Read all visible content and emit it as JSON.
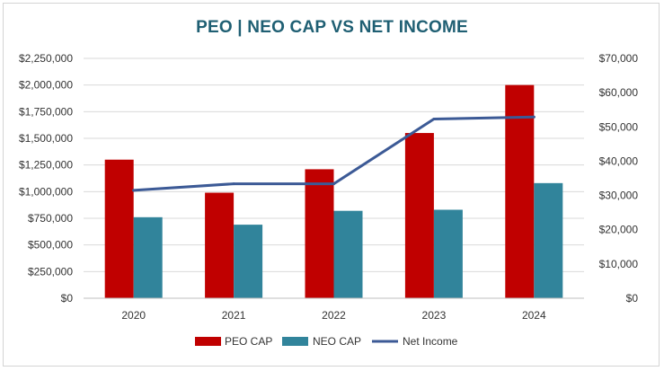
{
  "chart_data": {
    "type": "bar",
    "title": "PEO | NEO CAP VS NET INCOME",
    "categories": [
      "2020",
      "2021",
      "2022",
      "2023",
      "2024"
    ],
    "series": [
      {
        "name": "PEO CAP",
        "axis": "left",
        "kind": "bar",
        "color": "#c00000",
        "values": [
          1300000,
          990000,
          1210000,
          1550000,
          2000000
        ]
      },
      {
        "name": "NEO CAP",
        "axis": "left",
        "kind": "bar",
        "color": "#31849b",
        "values": [
          760000,
          690000,
          820000,
          830000,
          1080000
        ]
      },
      {
        "name": "Net Income",
        "axis": "right",
        "kind": "line",
        "color": "#3c5a96",
        "values": [
          31500,
          33400,
          33400,
          52300,
          52900
        ]
      }
    ],
    "y_left": {
      "ylim": [
        0,
        2250000
      ],
      "ticks": [
        0,
        250000,
        500000,
        750000,
        1000000,
        1250000,
        1500000,
        1750000,
        2000000,
        2250000
      ],
      "tick_labels": [
        "$0",
        "$250,000",
        "$500,000",
        "$750,000",
        "$1,000,000",
        "$1,250,000",
        "$1,500,000",
        "$1,750,000",
        "$2,000,000",
        "$2,250,000"
      ]
    },
    "y_right": {
      "ylim": [
        0,
        70000
      ],
      "ticks": [
        0,
        10000,
        20000,
        30000,
        40000,
        50000,
        60000,
        70000
      ],
      "tick_labels": [
        "$0",
        "$10,000",
        "$20,000",
        "$30,000",
        "$40,000",
        "$50,000",
        "$60,000",
        "$70,000"
      ]
    },
    "grid": true,
    "legend_position": "bottom-center"
  }
}
